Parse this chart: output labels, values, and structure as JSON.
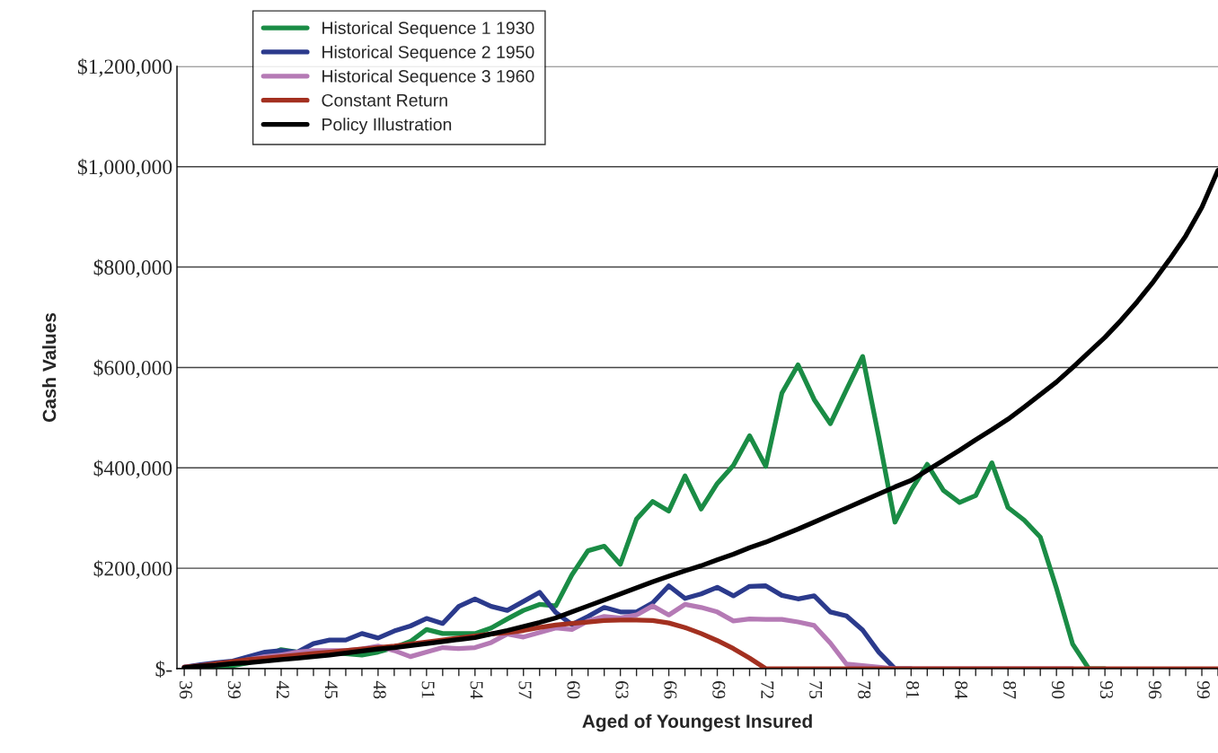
{
  "chart_data": {
    "type": "line",
    "xlabel": "Aged of Youngest Insured",
    "ylabel": "Cash Values",
    "categories": [
      "36",
      null,
      null,
      "39",
      null,
      null,
      "42",
      null,
      null,
      "45",
      null,
      null,
      "48",
      null,
      null,
      "51",
      null,
      null,
      "54",
      null,
      null,
      "57",
      null,
      null,
      "60",
      null,
      null,
      "63",
      null,
      null,
      "66",
      null,
      null,
      "69",
      null,
      null,
      "72",
      null,
      null,
      "75",
      null,
      null,
      "78",
      null,
      null,
      "81",
      null,
      null,
      "84",
      null,
      null,
      "87",
      null,
      null,
      "90",
      null,
      null,
      "93",
      null,
      null,
      "96",
      null,
      null,
      "99",
      null
    ],
    "series": [
      {
        "name": "Historical Sequence 1 1930",
        "color": "#1a8c45",
        "values": [
          0,
          2000,
          3000,
          6000,
          12000,
          24000,
          38000,
          33000,
          33000,
          33000,
          30000,
          27000,
          33000,
          42000,
          54000,
          78000,
          70000,
          70000,
          70000,
          81000,
          99000,
          116000,
          128000,
          125000,
          187000,
          235000,
          244000,
          208000,
          298000,
          333000,
          314000,
          384000,
          318000,
          369000,
          405000,
          464000,
          403000,
          549000,
          605000,
          536000,
          488000,
          556000,
          622000,
          461000,
          292000,
          355000,
          407000,
          355000,
          331000,
          345000,
          410000,
          321000,
          296000,
          262000,
          160000,
          49000,
          0,
          0,
          null,
          null,
          null,
          null,
          null,
          null,
          null
        ]
      },
      {
        "name": "Historical Sequence 2 1950",
        "color": "#2b3a8c",
        "values": [
          3000,
          8000,
          12000,
          15000,
          24000,
          33000,
          36000,
          33000,
          50000,
          57000,
          57000,
          70000,
          61000,
          75000,
          85000,
          100000,
          90000,
          124000,
          139000,
          124000,
          116000,
          134000,
          152000,
          112000,
          88000,
          104000,
          122000,
          113000,
          113000,
          131000,
          165000,
          140000,
          149000,
          162000,
          145000,
          164000,
          165000,
          146000,
          139000,
          145000,
          113000,
          105000,
          77000,
          33000,
          0,
          0,
          null,
          null,
          null,
          null,
          null,
          null,
          null,
          null,
          null,
          null,
          null,
          null,
          null,
          null,
          null,
          null,
          null,
          null,
          null
        ]
      },
      {
        "name": "Historical Sequence 3 1960",
        "color": "#b57ab5",
        "values": [
          3000,
          5000,
          9000,
          12000,
          18000,
          24000,
          27000,
          33000,
          36000,
          36000,
          36000,
          39000,
          45000,
          36000,
          24000,
          33000,
          42000,
          40000,
          42000,
          52000,
          69000,
          63000,
          72000,
          81000,
          78000,
          95000,
          104000,
          101000,
          107000,
          125000,
          107000,
          128000,
          122000,
          113000,
          95000,
          99000,
          98000,
          98000,
          93000,
          86000,
          51000,
          9000,
          6000,
          3000,
          0,
          0,
          0,
          0,
          0,
          0,
          0,
          0,
          0,
          0,
          0,
          0,
          null,
          null,
          null,
          null,
          null,
          null,
          null,
          null,
          null
        ]
      },
      {
        "name": "Constant Return",
        "color": "#a33020",
        "values": [
          3000,
          6000,
          10000,
          14000,
          18000,
          21000,
          24000,
          27000,
          30000,
          33000,
          36000,
          39000,
          42000,
          45000,
          49000,
          53000,
          57000,
          61000,
          65000,
          69000,
          72000,
          76000,
          82000,
          87000,
          90000,
          93000,
          96000,
          97000,
          97000,
          96000,
          91000,
          82000,
          70000,
          56000,
          40000,
          21000,
          0,
          0,
          0,
          0,
          0,
          0,
          0,
          0,
          0,
          0,
          0,
          0,
          0,
          0,
          0,
          0,
          0,
          0,
          0,
          0,
          0,
          0,
          0,
          0,
          0,
          0,
          0,
          0,
          0
        ]
      },
      {
        "name": "Policy Illustration",
        "color": "#000000",
        "values": [
          2000,
          5000,
          7000,
          10000,
          12000,
          15000,
          18000,
          21000,
          24000,
          27000,
          31000,
          35000,
          39000,
          42000,
          46000,
          50000,
          54000,
          58000,
          62000,
          69000,
          76000,
          84000,
          92000,
          101000,
          113000,
          125000,
          137000,
          149000,
          161000,
          173000,
          184000,
          195000,
          205000,
          217000,
          228000,
          241000,
          252000,
          265000,
          278000,
          292000,
          306000,
          320000,
          334000,
          348000,
          362000,
          375000,
          395000,
          415000,
          435000,
          456000,
          476000,
          497000,
          521000,
          546000,
          571000,
          600000,
          630000,
          660000,
          694000,
          731000,
          771000,
          815000,
          862000,
          919000,
          993000
        ]
      }
    ],
    "ylim": [
      0,
      1200000
    ],
    "yticks": [
      {
        "value": 0,
        "label": "$-"
      },
      {
        "value": 200000,
        "label": "$200,000"
      },
      {
        "value": 400000,
        "label": "$400,000"
      },
      {
        "value": 600000,
        "label": "$600,000"
      },
      {
        "value": 800000,
        "label": "$800,000"
      },
      {
        "value": 1000000,
        "label": "$1,000,000"
      },
      {
        "value": 1200000,
        "label": "$1,200,000"
      }
    ],
    "grid": "y",
    "legend": "top left",
    "marker": "none",
    "line_style": "solid"
  }
}
